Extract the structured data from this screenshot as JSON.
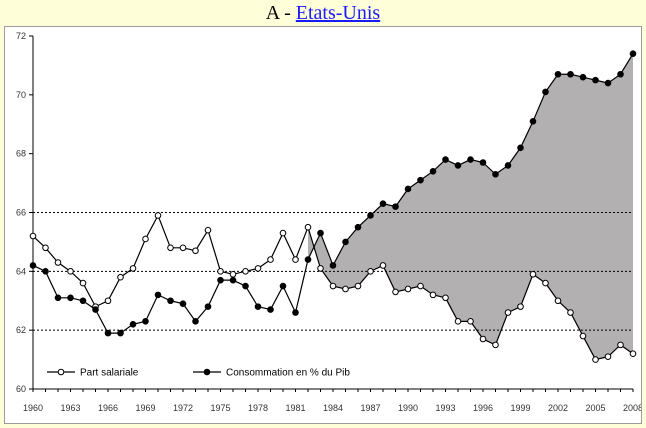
{
  "header": {
    "prefix": "A - ",
    "link_text": "Etats-Unis"
  },
  "chart_data": {
    "type": "line",
    "x": [
      1960,
      1961,
      1962,
      1963,
      1964,
      1965,
      1966,
      1967,
      1968,
      1969,
      1970,
      1971,
      1972,
      1973,
      1974,
      1975,
      1976,
      1977,
      1978,
      1979,
      1980,
      1981,
      1982,
      1983,
      1984,
      1985,
      1986,
      1987,
      1988,
      1989,
      1990,
      1991,
      1992,
      1993,
      1994,
      1995,
      1996,
      1997,
      1998,
      1999,
      2000,
      2001,
      2002,
      2003,
      2004,
      2005,
      2006,
      2007,
      2008
    ],
    "x_tick_labels": [
      "1960",
      "1963",
      "1966",
      "1969",
      "1972",
      "1975",
      "1978",
      "1981",
      "1984",
      "1987",
      "1990",
      "1993",
      "1996",
      "1999",
      "2002",
      "2005",
      "2008"
    ],
    "y_tick_labels": [
      "60",
      "62",
      "64",
      "66",
      "68",
      "70",
      "72"
    ],
    "ylim": [
      60,
      72
    ],
    "gridlines_y": [
      62,
      64,
      66
    ],
    "gridline_style": "dotted",
    "shaded_region": {
      "description_color": "#b2b0b0",
      "from_x": 1982,
      "between": [
        "Consommation en % du Pib",
        "Part salariale"
      ]
    },
    "legend_position": "bottom-left",
    "series": [
      {
        "name": "Part salariale",
        "marker": "open-circle",
        "values": [
          65.2,
          64.8,
          64.3,
          64.0,
          63.6,
          62.8,
          63.0,
          63.8,
          64.1,
          65.1,
          65.9,
          64.8,
          64.8,
          64.7,
          65.4,
          64.0,
          63.9,
          64.0,
          64.1,
          64.4,
          65.3,
          64.4,
          65.5,
          64.1,
          63.5,
          63.4,
          63.5,
          64.0,
          64.2,
          63.3,
          63.4,
          63.5,
          63.2,
          63.1,
          62.3,
          62.3,
          61.7,
          61.5,
          62.6,
          62.8,
          63.9,
          63.6,
          63.0,
          62.6,
          61.8,
          61.0,
          61.1,
          61.5,
          61.2
        ]
      },
      {
        "name": "Consommation en % du Pib",
        "marker": "filled-circle",
        "values": [
          64.2,
          64.0,
          63.1,
          63.1,
          63.0,
          62.7,
          61.9,
          61.9,
          62.2,
          62.3,
          63.2,
          63.0,
          62.9,
          62.3,
          62.8,
          63.7,
          63.7,
          63.5,
          62.8,
          62.7,
          63.5,
          62.6,
          64.4,
          65.3,
          64.2,
          65.0,
          65.5,
          65.9,
          66.3,
          66.2,
          66.8,
          67.1,
          67.4,
          67.8,
          67.6,
          67.8,
          67.7,
          67.3,
          67.6,
          68.2,
          69.1,
          70.1,
          70.7,
          70.7,
          70.6,
          70.5,
          70.4,
          70.7,
          71.4
        ]
      }
    ]
  }
}
